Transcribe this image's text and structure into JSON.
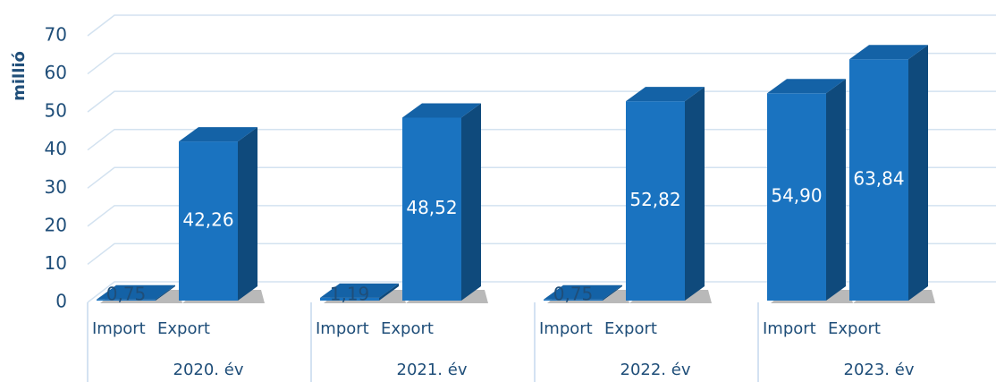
{
  "chart_data": {
    "type": "bar3d",
    "y_label": "millió",
    "categories": [
      "2020. év",
      "2021. év",
      "2022. év",
      "2023. év"
    ],
    "series": [
      {
        "name": "Import",
        "color": "#1a73c0",
        "values": [
          0.75,
          1.19,
          0.75,
          54.9
        ],
        "value_labels": [
          "0,75",
          "1,19",
          "0,75",
          "54,90"
        ]
      },
      {
        "name": "Export",
        "color": "#1a73c0",
        "values": [
          42.26,
          48.52,
          52.82,
          63.84
        ],
        "value_labels": [
          "42,26",
          "48,52",
          "52,82",
          "63,84"
        ]
      }
    ],
    "ylim": [
      0,
      70
    ],
    "yticks": [
      0,
      10,
      20,
      30,
      40,
      50,
      60,
      70
    ],
    "grid": true
  }
}
